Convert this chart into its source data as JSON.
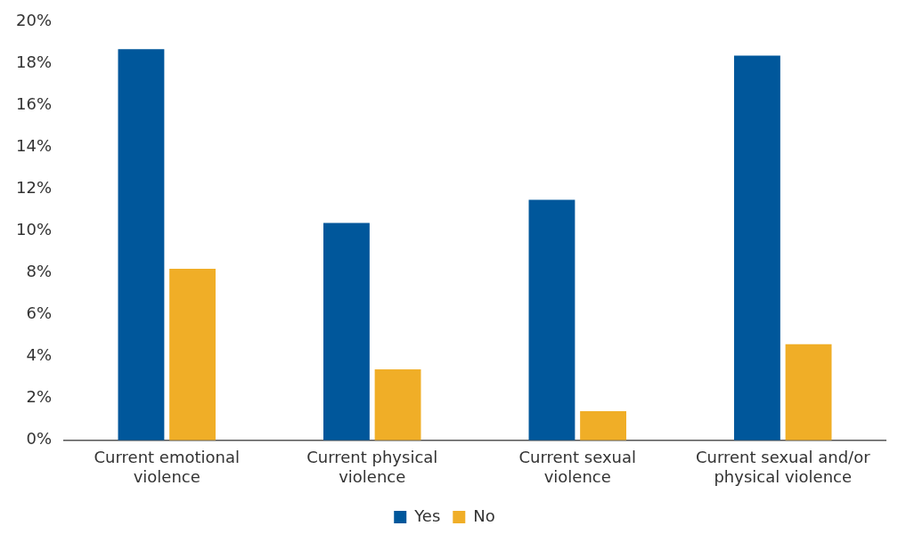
{
  "chart_data": {
    "type": "bar",
    "categories": [
      "Current emotional violence",
      "Current physical violence",
      "Current sexual violence",
      "Current sexual and/or physical violence"
    ],
    "series": [
      {
        "name": "Yes",
        "color": "#00579b",
        "values": [
          18.7,
          10.4,
          11.5,
          18.4
        ]
      },
      {
        "name": "No",
        "color": "#f0ae27",
        "values": [
          8.2,
          3.4,
          1.4,
          4.6
        ]
      }
    ],
    "ylim": [
      0,
      20
    ],
    "yticks": [
      {
        "value": 0,
        "label": "0%"
      },
      {
        "value": 2,
        "label": "2%"
      },
      {
        "value": 4,
        "label": "4%"
      },
      {
        "value": 6,
        "label": "6%"
      },
      {
        "value": 8,
        "label": "8%"
      },
      {
        "value": 10,
        "label": "10%"
      },
      {
        "value": 12,
        "label": "12%"
      },
      {
        "value": 14,
        "label": "14%"
      },
      {
        "value": 16,
        "label": "16%"
      },
      {
        "value": 18,
        "label": "18%"
      },
      {
        "value": 20,
        "label": "20%"
      }
    ],
    "grid": false,
    "legend": "bottom"
  }
}
